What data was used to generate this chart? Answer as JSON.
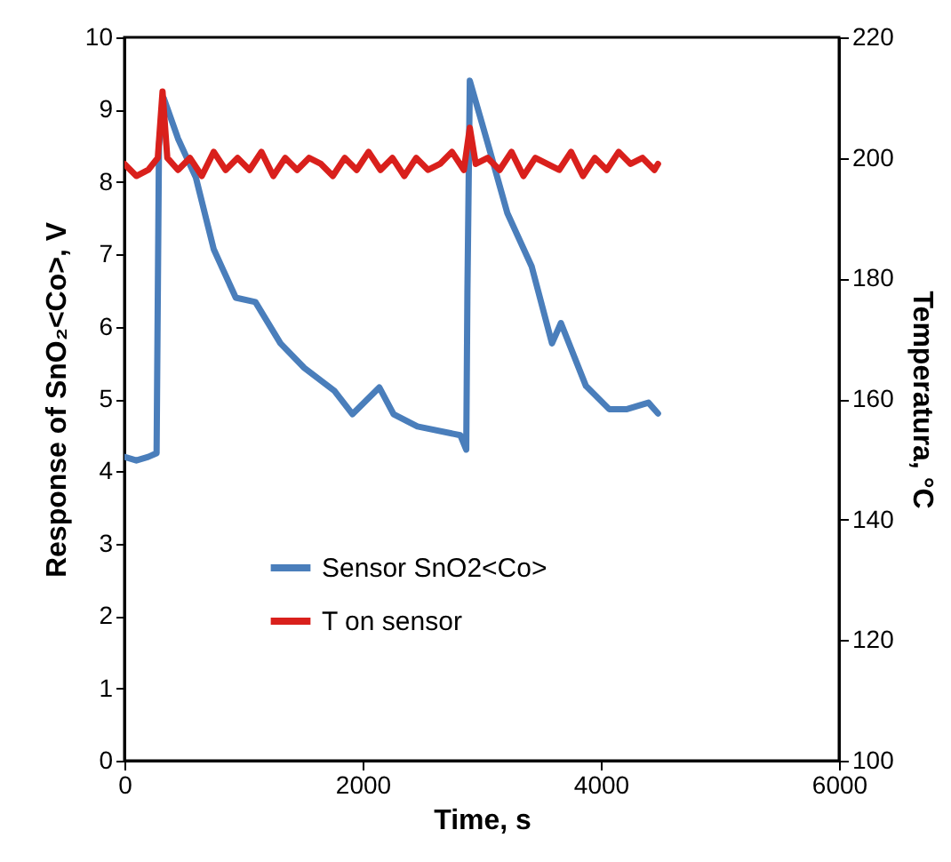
{
  "chart_data": {
    "type": "line",
    "xlabel": "Time, s",
    "ylabel": "Response of SnO₂<Co>, V",
    "y2label": "Temperatura, °C",
    "xlim": [
      0,
      6000
    ],
    "xticks": [
      0,
      2000,
      4000,
      6000
    ],
    "ylim": [
      0,
      10
    ],
    "yticks": [
      0,
      1,
      2,
      3,
      4,
      5,
      6,
      7,
      8,
      9,
      10
    ],
    "y2lim": [
      100,
      220
    ],
    "y2ticks": [
      100,
      120,
      140,
      160,
      180,
      200,
      220
    ],
    "legend": "bottom",
    "grid": false,
    "line_style": "solid",
    "series": [
      {
        "name": "Sensor SnO2<Co>",
        "color": "#4a7ebb",
        "x": [
          0,
          100,
          200,
          270,
          290,
          330,
          450,
          600,
          750,
          935,
          1100,
          1310,
          1510,
          1765,
          1915,
          2140,
          2260,
          2460,
          2820,
          2870,
          2880,
          2900,
          3060,
          3215,
          3420,
          3590,
          3665,
          3875,
          4070,
          4220,
          4400,
          4480
        ],
        "values": [
          4.2,
          4.15,
          4.2,
          4.25,
          8.5,
          9.16,
          8.6,
          8.06,
          7.07,
          6.4,
          6.34,
          5.77,
          5.43,
          5.11,
          4.79,
          5.16,
          4.79,
          4.62,
          4.5,
          4.3,
          6.5,
          9.4,
          8.48,
          7.57,
          6.83,
          5.77,
          6.05,
          5.18,
          4.86,
          4.86,
          4.95,
          4.8
        ]
      },
      {
        "name": "T on sensor",
        "color": "#d9201c",
        "axis": "y2",
        "x": [
          0,
          100,
          200,
          280,
          320,
          360,
          450,
          550,
          650,
          750,
          850,
          950,
          1050,
          1150,
          1250,
          1350,
          1450,
          1550,
          1650,
          1750,
          1850,
          1950,
          2050,
          2150,
          2250,
          2350,
          2450,
          2550,
          2650,
          2750,
          2850,
          2900,
          2950,
          3050,
          3150,
          3250,
          3350,
          3450,
          3550,
          3650,
          3750,
          3850,
          3950,
          4050,
          4150,
          4250,
          4350,
          4450,
          4480
        ],
        "values": [
          199,
          197,
          198,
          200,
          211,
          200,
          198,
          200,
          197,
          201,
          198,
          200,
          198,
          201,
          197,
          200,
          198,
          200,
          199,
          197,
          200,
          198,
          201,
          198,
          200,
          197,
          200,
          198,
          199,
          201,
          198,
          205,
          199,
          200,
          198,
          201,
          197,
          200,
          199,
          198,
          201,
          197,
          200,
          198,
          201,
          199,
          200,
          198,
          199
        ]
      }
    ]
  }
}
